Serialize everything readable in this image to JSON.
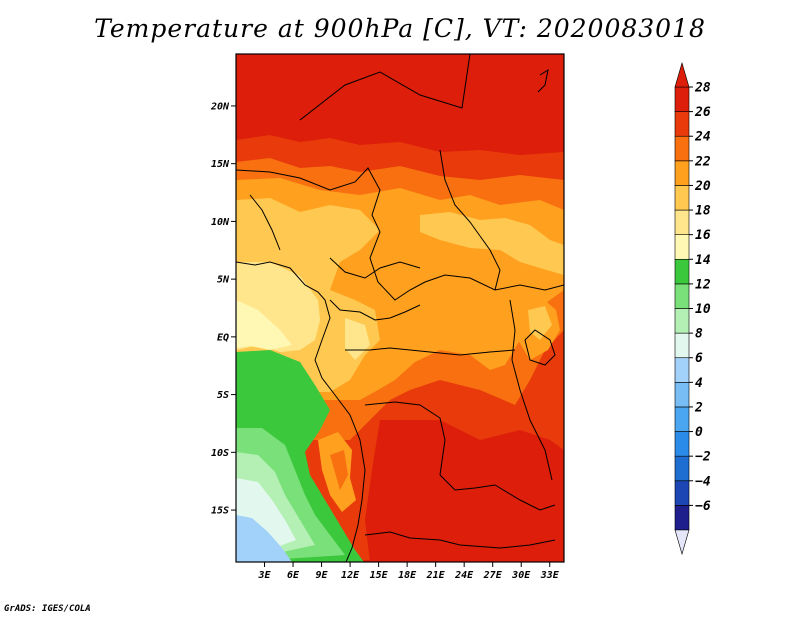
{
  "title": "Temperature at 900hPa [C], VT: 2020083018",
  "credit": "GrADS: IGES/COLA",
  "chart_data": {
    "type": "heatmap",
    "variable": "Temperature at 900hPa",
    "units": "C",
    "valid_time": "2020083018",
    "lat_range": [
      -19.5,
      24.5
    ],
    "lon_range": [
      0,
      34.5
    ],
    "lat_ticks": [
      {
        "value": 20,
        "label": "20N"
      },
      {
        "value": 15,
        "label": "15N"
      },
      {
        "value": 10,
        "label": "10N"
      },
      {
        "value": 5,
        "label": "5N"
      },
      {
        "value": 0,
        "label": "EQ"
      },
      {
        "value": -5,
        "label": "5S"
      },
      {
        "value": -10,
        "label": "10S"
      },
      {
        "value": -15,
        "label": "15S"
      }
    ],
    "lon_ticks": [
      {
        "value": 3,
        "label": "3E"
      },
      {
        "value": 6,
        "label": "6E"
      },
      {
        "value": 9,
        "label": "9E"
      },
      {
        "value": 12,
        "label": "12E"
      },
      {
        "value": 15,
        "label": "15E"
      },
      {
        "value": 18,
        "label": "18E"
      },
      {
        "value": 21,
        "label": "21E"
      },
      {
        "value": 24,
        "label": "24E"
      },
      {
        "value": 27,
        "label": "27E"
      },
      {
        "value": 30,
        "label": "30E"
      },
      {
        "value": 33,
        "label": "33E"
      }
    ],
    "colorbar": {
      "levels": [
        -6,
        -4,
        -2,
        0,
        2,
        4,
        6,
        8,
        10,
        12,
        14,
        16,
        18,
        20,
        22,
        24,
        26,
        28
      ],
      "labels": [
        "28",
        "26",
        "24",
        "22",
        "20",
        "18",
        "16",
        "14",
        "12",
        "10",
        "8",
        "6",
        "4",
        "2",
        "0",
        "−2",
        "−4",
        "−6"
      ],
      "colors_low_to_high": [
        "#1e1e8c",
        "#1c46b4",
        "#1e6ed2",
        "#2a8ce8",
        "#4aa6f0",
        "#78bef5",
        "#a2d2fa",
        "#e2f8ee",
        "#b4f0b4",
        "#7ae07a",
        "#3cc83c",
        "#fff8b4",
        "#ffe68c",
        "#ffc850",
        "#ffa01e",
        "#f87010",
        "#e83a0a",
        "#dc1e0a"
      ],
      "under_color": "#e6e6fa",
      "over_color": "#dc1e0a"
    }
  }
}
